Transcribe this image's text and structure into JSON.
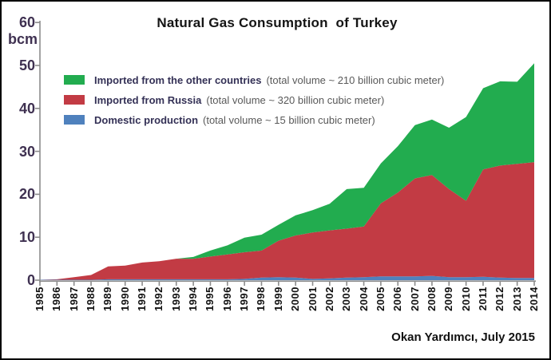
{
  "window": {
    "background": "#ffffff",
    "border_color": "#000000"
  },
  "title": "Natural Gas Consumption  of Turkey",
  "y_axis": {
    "unit_label": "bcm",
    "ticks": [
      0,
      10,
      20,
      30,
      40,
      50,
      60
    ],
    "label_color": "#3F3151",
    "axis_color": "#8C8C8C"
  },
  "legend": {
    "position": "top-left",
    "items": [
      {
        "label": "Imported from the other countries",
        "note": "(total volume ~ 210 billion cubic meter)",
        "color": "#22AC4F"
      },
      {
        "label": "Imported from Russia",
        "note": "(total volume ~ 320 billion cubic meter)",
        "color": "#C23B44"
      },
      {
        "label": "Domestic production",
        "note": "(total volume ~ 15 billion cubic meter)",
        "color": "#4F81BD"
      }
    ]
  },
  "attribution": "Okan Yardımcı, July 2015",
  "chart_data": {
    "type": "area",
    "stacked": true,
    "title": "Natural Gas Consumption of Turkey",
    "ylabel": "bcm",
    "ylim": [
      0,
      60
    ],
    "grid": false,
    "legend_position": "top-left",
    "x": [
      1985,
      1986,
      1987,
      1988,
      1989,
      1990,
      1991,
      1992,
      1993,
      1994,
      1995,
      1996,
      1997,
      1998,
      1999,
      2000,
      2001,
      2002,
      2003,
      2004,
      2005,
      2006,
      2007,
      2008,
      2009,
      2010,
      2011,
      2012,
      2013,
      2014
    ],
    "series": [
      {
        "name": "Domestic production",
        "color": "#4F81BD",
        "values": [
          0.1,
          0.1,
          0.1,
          0.1,
          0.2,
          0.2,
          0.2,
          0.2,
          0.2,
          0.2,
          0.2,
          0.2,
          0.3,
          0.6,
          0.7,
          0.6,
          0.3,
          0.4,
          0.6,
          0.7,
          0.9,
          0.9,
          0.9,
          1.0,
          0.7,
          0.7,
          0.8,
          0.6,
          0.5,
          0.5
        ]
      },
      {
        "name": "Imported from Russia",
        "color": "#C23B44",
        "values": [
          0.0,
          0.1,
          0.6,
          1.1,
          3.0,
          3.2,
          3.9,
          4.2,
          4.8,
          4.8,
          5.3,
          5.8,
          6.2,
          6.3,
          8.5,
          9.8,
          10.8,
          11.2,
          11.4,
          11.8,
          17.0,
          19.5,
          22.8,
          23.5,
          20.5,
          17.8,
          25.0,
          26.1,
          26.6,
          27.0
        ]
      },
      {
        "name": "Imported from the other countries",
        "color": "#22AC4F",
        "values": [
          0.0,
          0.0,
          0.0,
          0.0,
          0.0,
          0.0,
          0.0,
          0.0,
          0.0,
          0.4,
          1.4,
          2.1,
          3.4,
          3.7,
          3.7,
          4.7,
          5.2,
          6.2,
          9.2,
          9.0,
          9.3,
          10.8,
          12.4,
          12.9,
          14.3,
          19.5,
          18.9,
          19.6,
          19.1,
          23.0
        ]
      }
    ]
  }
}
